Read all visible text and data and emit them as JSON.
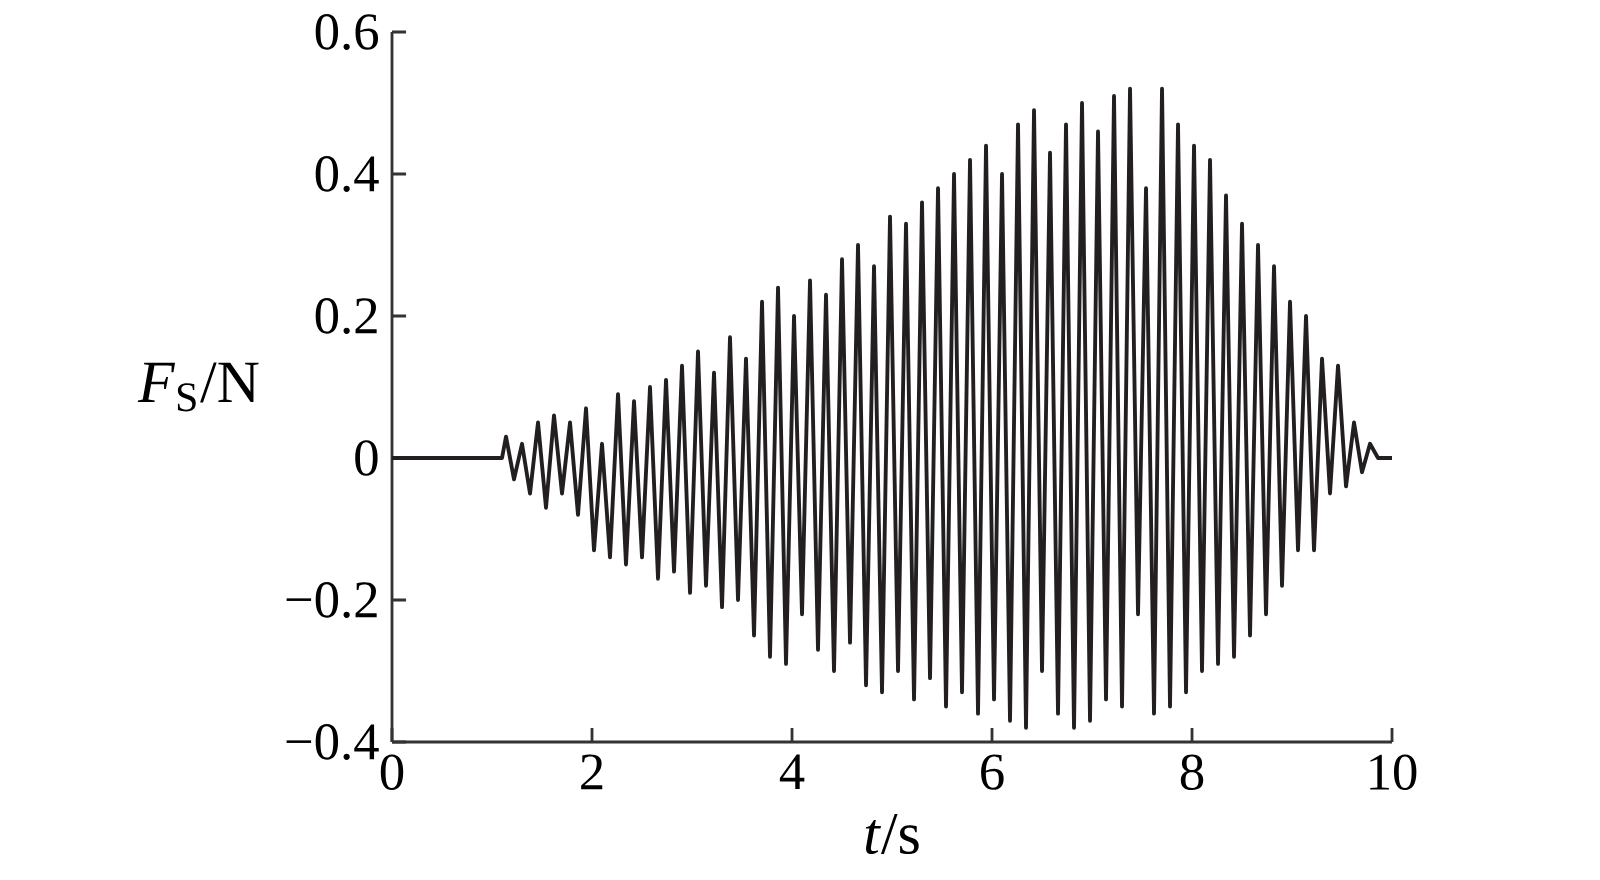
{
  "chart_data": {
    "type": "line",
    "xlabel": "*t*/s",
    "ylabel": "*F*$_{S}$/N",
    "xlim": [
      0,
      10
    ],
    "ylim": [
      -0.4,
      0.6
    ],
    "xticks": [
      0,
      2,
      4,
      6,
      8,
      10
    ],
    "yticks": [
      {
        "value": -0.4,
        "label": "−0.4"
      },
      {
        "value": -0.2,
        "label": "−0.2"
      },
      0,
      0.2,
      0.4,
      0.6
    ],
    "marker": "none",
    "line_style": "solid",
    "x": [
      0,
      1.1,
      1.14,
      1.22,
      1.3,
      1.38,
      1.46,
      1.54,
      1.62,
      1.7,
      1.78,
      1.86,
      1.94,
      2.02,
      2.1,
      2.18,
      2.26,
      2.34,
      2.42,
      2.5,
      2.58,
      2.66,
      2.74,
      2.82,
      2.9,
      2.98,
      3.06,
      3.14,
      3.22,
      3.3,
      3.38,
      3.46,
      3.54,
      3.62,
      3.7,
      3.78,
      3.86,
      3.94,
      4.02,
      4.1,
      4.18,
      4.26,
      4.34,
      4.42,
      4.5,
      4.58,
      4.66,
      4.74,
      4.82,
      4.9,
      4.98,
      5.06,
      5.14,
      5.22,
      5.3,
      5.38,
      5.46,
      5.54,
      5.62,
      5.7,
      5.78,
      5.86,
      5.94,
      6.02,
      6.1,
      6.18,
      6.26,
      6.34,
      6.42,
      6.5,
      6.58,
      6.66,
      6.74,
      6.82,
      6.9,
      6.98,
      7.06,
      7.14,
      7.22,
      7.3,
      7.38,
      7.46,
      7.54,
      7.62,
      7.7,
      7.78,
      7.86,
      7.94,
      8.02,
      8.1,
      8.18,
      8.26,
      8.34,
      8.42,
      8.5,
      8.58,
      8.66,
      8.74,
      8.82,
      8.9,
      8.98,
      9.06,
      9.14,
      9.22,
      9.3,
      9.38,
      9.46,
      9.54,
      9.62,
      9.7,
      9.78,
      9.86,
      10.0
    ],
    "series": [
      {
        "color": "#231f20",
        "values": [
          0,
          0,
          0.03,
          -0.03,
          0.02,
          -0.05,
          0.05,
          -0.07,
          0.06,
          -0.05,
          0.05,
          -0.08,
          0.07,
          -0.13,
          0.02,
          -0.14,
          0.09,
          -0.15,
          0.08,
          -0.14,
          0.1,
          -0.17,
          0.11,
          -0.16,
          0.13,
          -0.19,
          0.15,
          -0.18,
          0.12,
          -0.21,
          0.17,
          -0.2,
          0.14,
          -0.25,
          0.22,
          -0.28,
          0.24,
          -0.29,
          0.2,
          -0.22,
          0.25,
          -0.27,
          0.23,
          -0.3,
          0.28,
          -0.26,
          0.3,
          -0.32,
          0.27,
          -0.33,
          0.34,
          -0.3,
          0.33,
          -0.34,
          0.36,
          -0.31,
          0.38,
          -0.35,
          0.4,
          -0.33,
          0.42,
          -0.36,
          0.44,
          -0.34,
          0.4,
          -0.37,
          0.47,
          -0.38,
          0.49,
          -0.3,
          0.43,
          -0.36,
          0.47,
          -0.38,
          0.5,
          -0.37,
          0.46,
          -0.34,
          0.51,
          -0.35,
          0.52,
          -0.22,
          0.38,
          -0.36,
          0.52,
          -0.35,
          0.47,
          -0.33,
          0.44,
          -0.3,
          0.42,
          -0.29,
          0.37,
          -0.28,
          0.33,
          -0.25,
          0.3,
          -0.22,
          0.27,
          -0.18,
          0.22,
          -0.13,
          0.2,
          -0.13,
          0.14,
          -0.05,
          0.13,
          -0.04,
          0.05,
          -0.02,
          0.02,
          0.0,
          0.0
        ]
      }
    ]
  }
}
